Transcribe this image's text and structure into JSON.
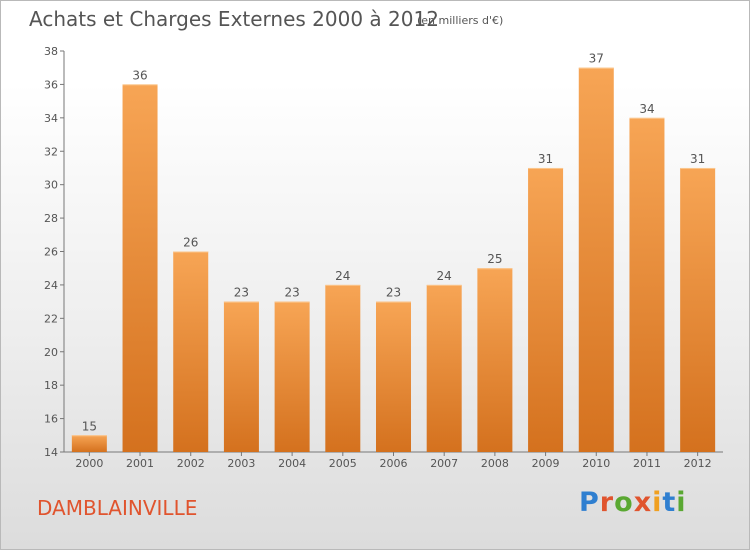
{
  "header": {
    "title": "Achats et Charges Externes 2000 à 2012",
    "subtitle": "(en milliers d'€)"
  },
  "footer": {
    "place": "DAMBLAINVILLE"
  },
  "logo": {
    "text": "Proxiti",
    "letter_colors": [
      "#2f7fd0",
      "#e0542e",
      "#5aa832",
      "#e0542e",
      "#f0a020",
      "#2f7fd0",
      "#5aa832"
    ]
  },
  "colors": {
    "bar_top": "#f7a555",
    "bar_bottom": "#d4711e",
    "axis": "#777777",
    "text": "#555555"
  },
  "chart_data": {
    "type": "bar",
    "title": "Achats et Charges Externes 2000 à 2012",
    "xlabel": "",
    "ylabel": "",
    "categories": [
      "2000",
      "2001",
      "2002",
      "2003",
      "2004",
      "2005",
      "2006",
      "2007",
      "2008",
      "2009",
      "2010",
      "2011",
      "2012"
    ],
    "values": [
      15,
      36,
      26,
      23,
      23,
      24,
      23,
      24,
      25,
      31,
      37,
      34,
      31
    ],
    "ylim": [
      14,
      38
    ],
    "yticks": [
      14,
      16,
      18,
      20,
      22,
      24,
      26,
      28,
      30,
      32,
      34,
      36,
      38
    ],
    "data_labels": true,
    "grid": false,
    "legend": "none"
  }
}
